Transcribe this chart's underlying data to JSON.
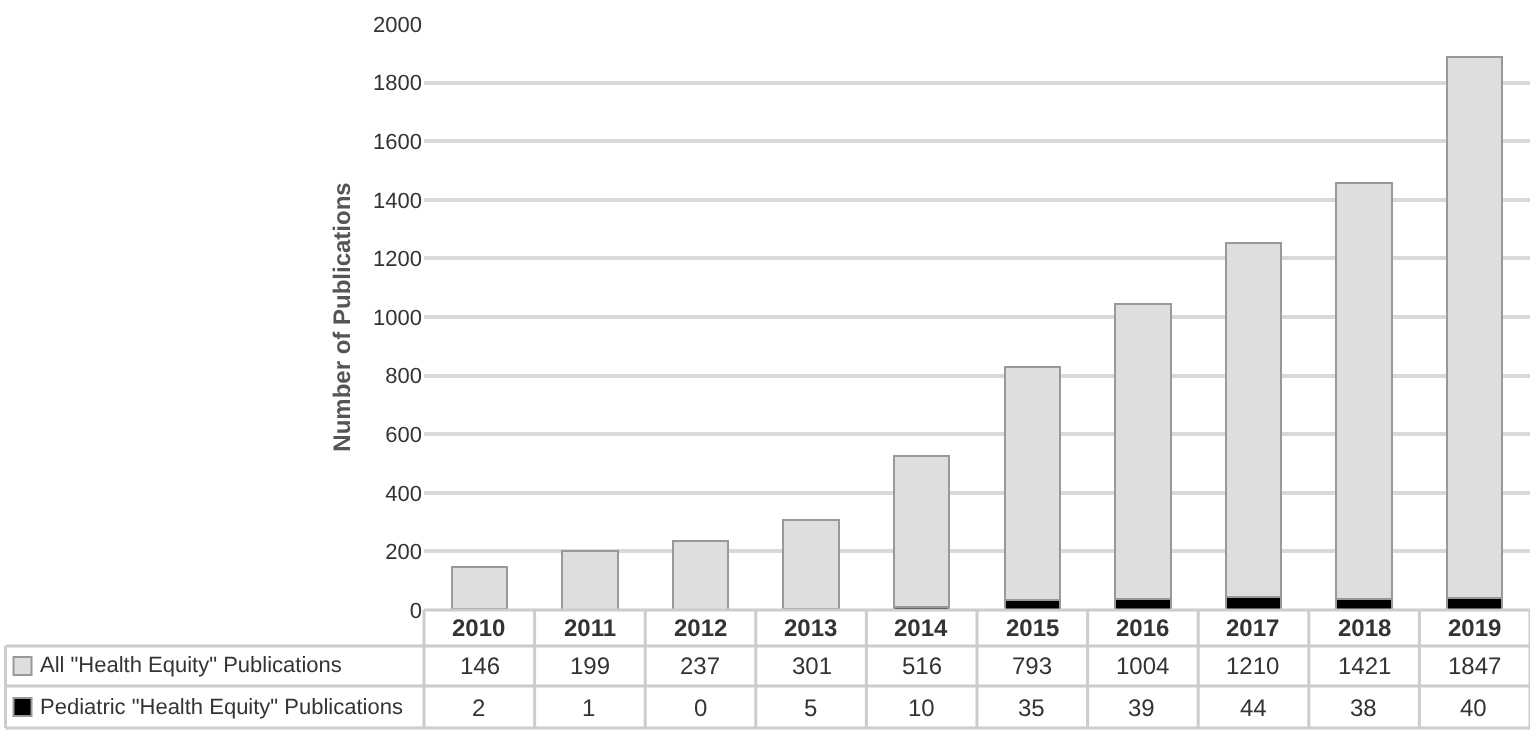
{
  "chart_data": {
    "type": "bar",
    "stacked": true,
    "ylabel": "Number of Publications",
    "categories": [
      "2010",
      "2011",
      "2012",
      "2013",
      "2014",
      "2015",
      "2016",
      "2017",
      "2018",
      "2019"
    ],
    "series": [
      {
        "name": "Pediatric \"Health Equity\" Publications",
        "color": "#000000",
        "values": [
          2,
          1,
          0,
          5,
          10,
          35,
          39,
          44,
          38,
          40
        ]
      },
      {
        "name": "All \"Health Equity\" Publications",
        "color": "#dedede",
        "values": [
          146,
          199,
          237,
          301,
          516,
          793,
          1004,
          1210,
          1421,
          1847
        ]
      }
    ],
    "ylim": [
      0,
      2000
    ],
    "yticks": [
      0,
      200,
      400,
      600,
      800,
      1000,
      1200,
      1400,
      1600,
      1800,
      2000
    ],
    "grid": "y",
    "legend": "bottom",
    "data_labels": true
  }
}
